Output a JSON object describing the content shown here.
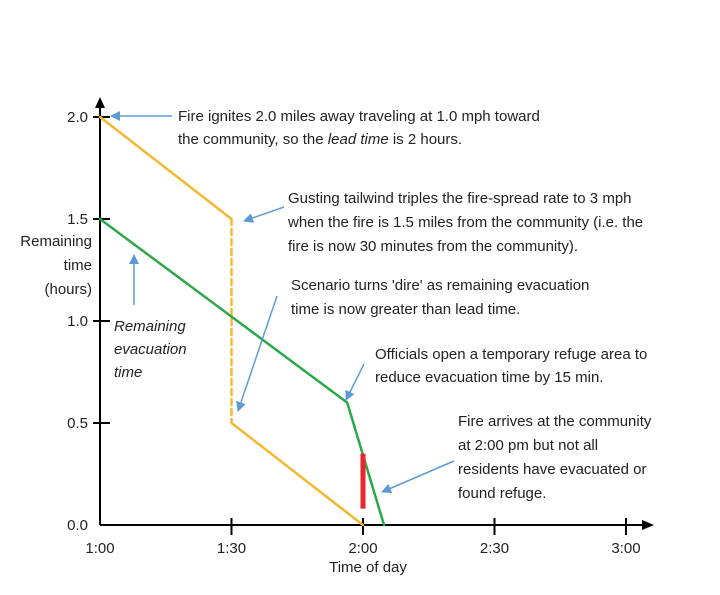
{
  "chart_data": {
    "type": "line",
    "xlabel": "Time of day",
    "ylabel": [
      "Remaining",
      "time",
      "(hours)"
    ],
    "x_ticks": [
      "1:00",
      "1:30",
      "2:00",
      "2:30",
      "3:00"
    ],
    "x_tick_values": [
      0,
      0.5,
      1.0,
      1.5,
      2.0
    ],
    "y_ticks": [
      "0.0",
      "0.5",
      "1.0",
      "1.5",
      "2.0"
    ],
    "y_tick_values": [
      0,
      0.5,
      1.0,
      1.5,
      2.0
    ],
    "xlim": [
      0,
      2.0
    ],
    "ylim": [
      0,
      2.0
    ],
    "grid": false,
    "series": [
      {
        "color": "#f5b731",
        "points": [
          [
            0,
            2.0
          ],
          [
            0.5,
            1.5
          ],
          [
            0.5,
            0.5
          ],
          [
            1.0,
            0.0
          ]
        ],
        "dashed_segment": 1
      },
      {
        "color": "#2ca84b",
        "points": [
          [
            0,
            1.5
          ],
          [
            0.94,
            0.6
          ],
          [
            1.08,
            0.0
          ]
        ]
      }
    ],
    "marker": {
      "color": "#e8262c",
      "x": 1.0,
      "y_from": 0.08,
      "y_to": 0.35
    },
    "annotations": [
      {
        "lines": [
          [
            {
              "t": "Fire ignites 2.0 miles away traveling at 1.0 mph toward"
            }
          ],
          [
            {
              "t": "the community, so the "
            },
            {
              "t": "lead time",
              "i": true
            },
            {
              "t": " is 2 hours."
            }
          ]
        ]
      },
      {
        "lines": [
          [
            {
              "t": "Gusting tailwind triples the fire-spread rate to 3 mph"
            }
          ],
          [
            {
              "t": "when the fire is 1.5 miles from the community (i.e. the"
            }
          ],
          [
            {
              "t": "fire is now 30 minutes from the community)."
            }
          ]
        ]
      },
      {
        "lines": [
          [
            {
              "t": "Scenario turns 'dire' as remaining evacuation"
            }
          ],
          [
            {
              "t": "time is now greater than lead time."
            }
          ]
        ]
      },
      {
        "lines": [
          [
            {
              "t": "Remaining",
              "i": true
            }
          ],
          [
            {
              "t": "evacuation",
              "i": true
            }
          ],
          [
            {
              "t": "time",
              "i": true
            }
          ]
        ]
      },
      {
        "lines": [
          [
            {
              "t": "Officials open a temporary refuge area to"
            }
          ],
          [
            {
              "t": "reduce evacuation time by 15 min."
            }
          ]
        ]
      },
      {
        "lines": [
          [
            {
              "t": "Fire arrives at the community"
            }
          ],
          [
            {
              "t": "at 2:00 pm but not all"
            }
          ],
          [
            {
              "t": "residents have evacuated or"
            }
          ],
          [
            {
              "t": "found refuge."
            }
          ]
        ]
      }
    ]
  }
}
